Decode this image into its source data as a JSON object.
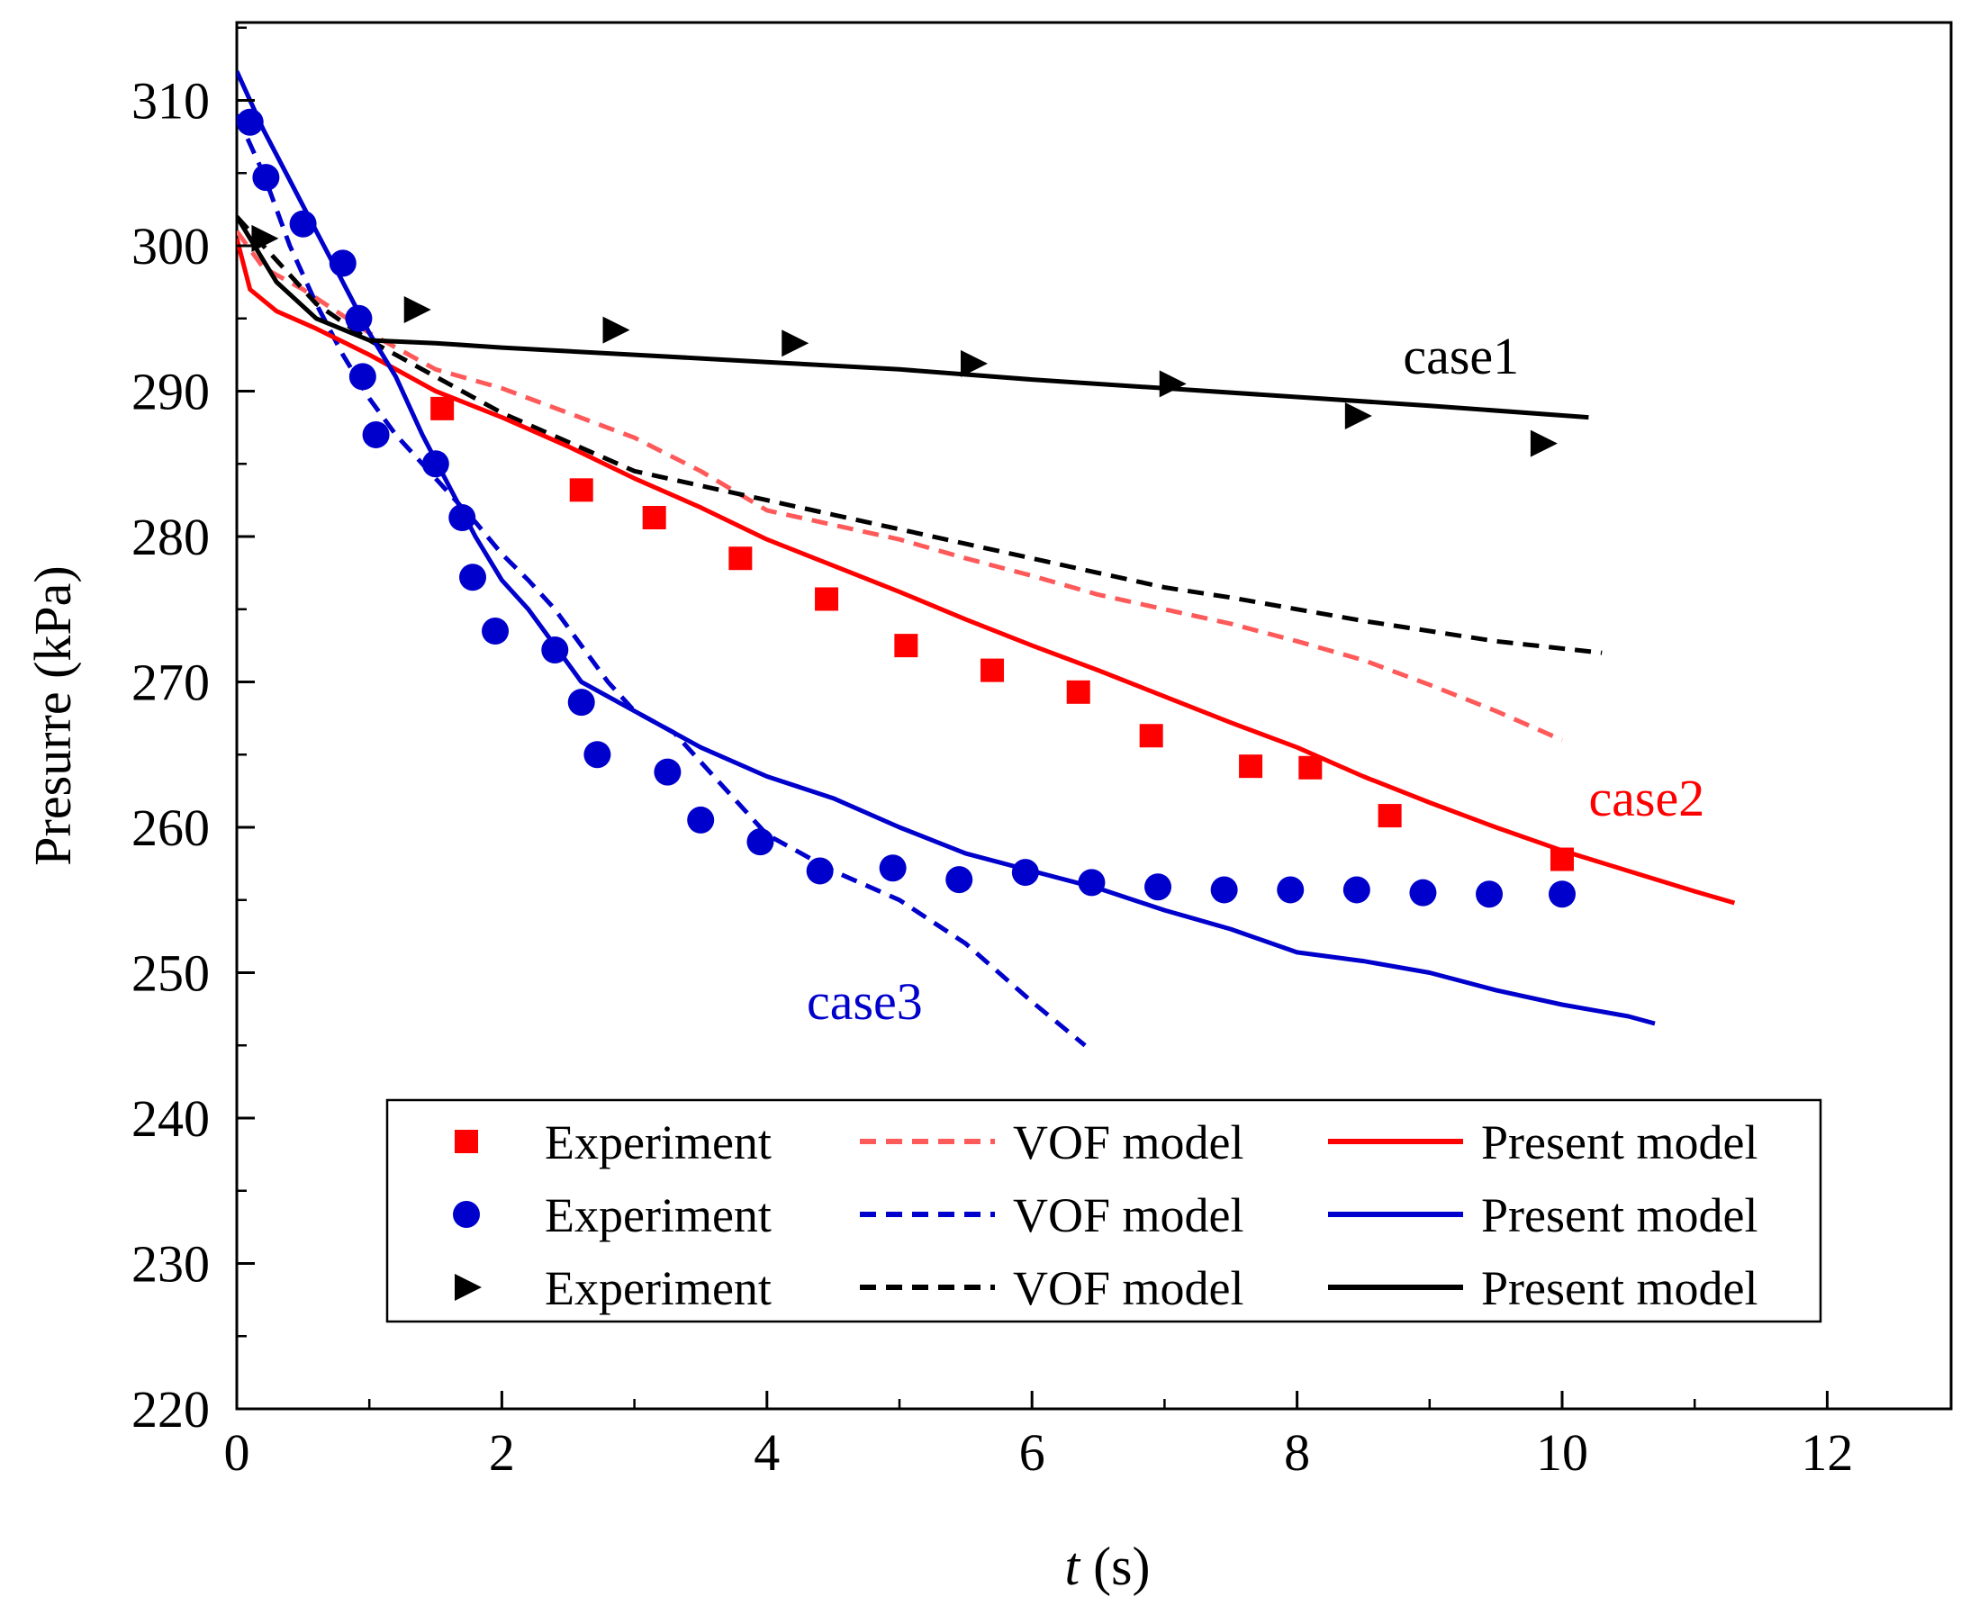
{
  "chart_data": {
    "type": "scatter",
    "xlabel_italic": "t",
    "xlabel_unit": " (s)",
    "ylabel": "Presurre (kPa)",
    "xlim": [
      0,
      13
    ],
    "ylim": [
      220,
      315
    ],
    "x_ticks": [
      0,
      2,
      4,
      6,
      8,
      10,
      12
    ],
    "y_ticks": [
      220,
      230,
      240,
      250,
      260,
      270,
      280,
      290,
      300,
      310
    ],
    "grid": false,
    "legend_position": "bottom-right",
    "colors": {
      "case1": "#000000",
      "case2": "#ff0000",
      "case3": "#0000cc",
      "case2_vof": "#ff5a5a"
    },
    "annotations": [
      {
        "text": "case1",
        "x": 8.8,
        "y": 291.2,
        "color": "#000000"
      },
      {
        "text": "case2",
        "x": 10.2,
        "y": 260.8,
        "color": "#ff0000"
      },
      {
        "text": "case3",
        "x": 4.3,
        "y": 246.8,
        "color": "#0000cc"
      }
    ],
    "legend": [
      {
        "label": "Experiment",
        "kind": "square",
        "case": "case2"
      },
      {
        "label": "VOF model",
        "kind": "dash",
        "case": "case2"
      },
      {
        "label": "Present model",
        "kind": "solid",
        "case": "case2"
      },
      {
        "label": "Experiment",
        "kind": "circle",
        "case": "case3"
      },
      {
        "label": "VOF model",
        "kind": "dash",
        "case": "case3"
      },
      {
        "label": "Present model",
        "kind": "solid",
        "case": "case3"
      },
      {
        "label": "Experiment",
        "kind": "triangle",
        "case": "case1"
      },
      {
        "label": "VOF model",
        "kind": "dash",
        "case": "case1"
      },
      {
        "label": "Present model",
        "kind": "solid",
        "case": "case1"
      }
    ],
    "series": [
      {
        "name": "case2 VOF model",
        "case": "case2",
        "kind": "dash",
        "color": "#ff5a5a",
        "points": [
          [
            0,
            301
          ],
          [
            0.2,
            298.5
          ],
          [
            0.5,
            297
          ],
          [
            1,
            294
          ],
          [
            1.5,
            291.5
          ],
          [
            2,
            290.2
          ],
          [
            2.5,
            288.5
          ],
          [
            3,
            286.8
          ],
          [
            3.5,
            284.5
          ],
          [
            4,
            281.8
          ],
          [
            4.5,
            280.8
          ],
          [
            5,
            279.8
          ],
          [
            5.5,
            278.5
          ],
          [
            6,
            277.3
          ],
          [
            6.5,
            276
          ],
          [
            7,
            275
          ],
          [
            7.5,
            274
          ],
          [
            8,
            272.8
          ],
          [
            8.5,
            271.5
          ],
          [
            9,
            269.8
          ],
          [
            9.5,
            268
          ],
          [
            10,
            266
          ]
        ]
      },
      {
        "name": "case3 VOF model",
        "case": "case3",
        "kind": "dash",
        "color": "#0000cc",
        "points": [
          [
            0,
            309
          ],
          [
            0.2,
            305
          ],
          [
            0.4,
            300
          ],
          [
            0.6,
            296
          ],
          [
            0.8,
            292.5
          ],
          [
            1,
            289.5
          ],
          [
            1.2,
            287
          ],
          [
            1.4,
            285
          ],
          [
            1.6,
            283
          ],
          [
            1.8,
            281
          ],
          [
            2,
            278.8
          ],
          [
            2.2,
            277
          ],
          [
            2.4,
            275
          ],
          [
            2.6,
            272.5
          ],
          [
            2.8,
            270
          ],
          [
            3,
            268
          ],
          [
            3.3,
            266.5
          ],
          [
            3.6,
            263.5
          ],
          [
            4,
            259.5
          ],
          [
            4.5,
            257
          ],
          [
            5,
            255
          ],
          [
            5.5,
            252
          ],
          [
            6,
            248
          ],
          [
            6.4,
            245
          ]
        ]
      },
      {
        "name": "case1 VOF model",
        "case": "case1",
        "kind": "dash",
        "color": "#000000",
        "points": [
          [
            0,
            302
          ],
          [
            0.3,
            299
          ],
          [
            0.6,
            296
          ],
          [
            1,
            293.5
          ],
          [
            1.5,
            291
          ],
          [
            2,
            288.5
          ],
          [
            2.5,
            286.5
          ],
          [
            3,
            284.5
          ],
          [
            3.5,
            283.5
          ],
          [
            4,
            282.5
          ],
          [
            4.5,
            281.5
          ],
          [
            5,
            280.5
          ],
          [
            5.5,
            279.5
          ],
          [
            6,
            278.5
          ],
          [
            6.5,
            277.5
          ],
          [
            7,
            276.5
          ],
          [
            7.5,
            275.8
          ],
          [
            8,
            275
          ],
          [
            8.5,
            274.2
          ],
          [
            9,
            273.5
          ],
          [
            9.5,
            272.8
          ],
          [
            10.3,
            272
          ]
        ]
      },
      {
        "name": "case2 Present model",
        "case": "case2",
        "kind": "solid",
        "color": "#ff0000",
        "points": [
          [
            0,
            300.5
          ],
          [
            0.1,
            297
          ],
          [
            0.3,
            295.5
          ],
          [
            0.6,
            294.3
          ],
          [
            1,
            292.5
          ],
          [
            1.5,
            290
          ],
          [
            2,
            288.2
          ],
          [
            2.5,
            286.2
          ],
          [
            3,
            284
          ],
          [
            3.5,
            282
          ],
          [
            4,
            279.8
          ],
          [
            4.5,
            278
          ],
          [
            5,
            276.2
          ],
          [
            5.5,
            274.3
          ],
          [
            6,
            272.5
          ],
          [
            6.5,
            270.8
          ],
          [
            7,
            269
          ],
          [
            7.5,
            267.2
          ],
          [
            8,
            265.5
          ],
          [
            8.5,
            263.5
          ],
          [
            9,
            261.7
          ],
          [
            9.5,
            260
          ],
          [
            10,
            258.4
          ],
          [
            10.5,
            257
          ],
          [
            11,
            255.6
          ],
          [
            11.3,
            254.8
          ]
        ]
      },
      {
        "name": "case3 Present model",
        "case": "case3",
        "kind": "solid",
        "color": "#0000cc",
        "points": [
          [
            0,
            312
          ],
          [
            0.2,
            308
          ],
          [
            0.4,
            304.5
          ],
          [
            0.6,
            301
          ],
          [
            0.8,
            297.5
          ],
          [
            1,
            294
          ],
          [
            1.2,
            291
          ],
          [
            1.4,
            287
          ],
          [
            1.6,
            283.5
          ],
          [
            1.8,
            280
          ],
          [
            2,
            277
          ],
          [
            2.2,
            275
          ],
          [
            2.4,
            272.5
          ],
          [
            2.6,
            270
          ],
          [
            3,
            268
          ],
          [
            3.5,
            265.5
          ],
          [
            4,
            263.5
          ],
          [
            4.5,
            262
          ],
          [
            5,
            260
          ],
          [
            5.5,
            258.2
          ],
          [
            6,
            257
          ],
          [
            6.5,
            255.8
          ],
          [
            7,
            254.3
          ],
          [
            7.5,
            253
          ],
          [
            8,
            251.4
          ],
          [
            8.5,
            250.8
          ],
          [
            9,
            250
          ],
          [
            9.5,
            248.8
          ],
          [
            10,
            247.8
          ],
          [
            10.5,
            247
          ],
          [
            10.7,
            246.5
          ]
        ]
      },
      {
        "name": "case1 Present model",
        "case": "case1",
        "kind": "solid",
        "color": "#000000",
        "points": [
          [
            0,
            302
          ],
          [
            0.3,
            297.5
          ],
          [
            0.6,
            295
          ],
          [
            1,
            293.5
          ],
          [
            1.5,
            293.3
          ],
          [
            2,
            293
          ],
          [
            3,
            292.5
          ],
          [
            4,
            292
          ],
          [
            5,
            291.5
          ],
          [
            6,
            290.8
          ],
          [
            7,
            290.2
          ],
          [
            8,
            289.6
          ],
          [
            9,
            289
          ],
          [
            10.2,
            288.2
          ]
        ]
      },
      {
        "name": "case2 Experiment",
        "case": "case2",
        "kind": "square",
        "color": "#ff0000",
        "points": [
          [
            1.55,
            288.8
          ],
          [
            2.6,
            283.2
          ],
          [
            3.15,
            281.3
          ],
          [
            3.8,
            278.5
          ],
          [
            4.45,
            275.7
          ],
          [
            5.05,
            272.5
          ],
          [
            5.7,
            270.8
          ],
          [
            6.35,
            269.3
          ],
          [
            6.9,
            266.3
          ],
          [
            7.65,
            264.2
          ],
          [
            8.1,
            264.1
          ],
          [
            8.7,
            260.8
          ],
          [
            10,
            257.8
          ]
        ]
      },
      {
        "name": "case3 Experiment",
        "case": "case3",
        "kind": "circle",
        "color": "#0000cc",
        "points": [
          [
            0.1,
            308.5
          ],
          [
            0.22,
            304.7
          ],
          [
            0.5,
            301.5
          ],
          [
            0.8,
            298.8
          ],
          [
            0.92,
            295
          ],
          [
            0.95,
            291
          ],
          [
            1.05,
            287
          ],
          [
            1.5,
            285
          ],
          [
            1.7,
            281.3
          ],
          [
            1.78,
            277.2
          ],
          [
            1.95,
            273.5
          ],
          [
            2.4,
            272.2
          ],
          [
            2.6,
            268.6
          ],
          [
            2.72,
            265
          ],
          [
            3.25,
            263.8
          ],
          [
            3.5,
            260.5
          ],
          [
            3.95,
            259
          ],
          [
            4.4,
            257
          ],
          [
            4.95,
            257.2
          ],
          [
            5.45,
            256.4
          ],
          [
            5.95,
            256.9
          ],
          [
            6.45,
            256.2
          ],
          [
            6.95,
            255.9
          ],
          [
            7.45,
            255.7
          ],
          [
            7.95,
            255.7
          ],
          [
            8.45,
            255.7
          ],
          [
            8.95,
            255.5
          ],
          [
            9.45,
            255.4
          ],
          [
            10,
            255.4
          ]
        ]
      },
      {
        "name": "case1 Experiment",
        "case": "case1",
        "kind": "triangle",
        "color": "#000000",
        "points": [
          [
            0.2,
            300.5
          ],
          [
            1.35,
            295.6
          ],
          [
            2.85,
            294.2
          ],
          [
            4.2,
            293.3
          ],
          [
            5.55,
            291.9
          ],
          [
            7.05,
            290.5
          ],
          [
            8.45,
            288.3
          ],
          [
            9.85,
            286.4
          ]
        ]
      }
    ]
  }
}
